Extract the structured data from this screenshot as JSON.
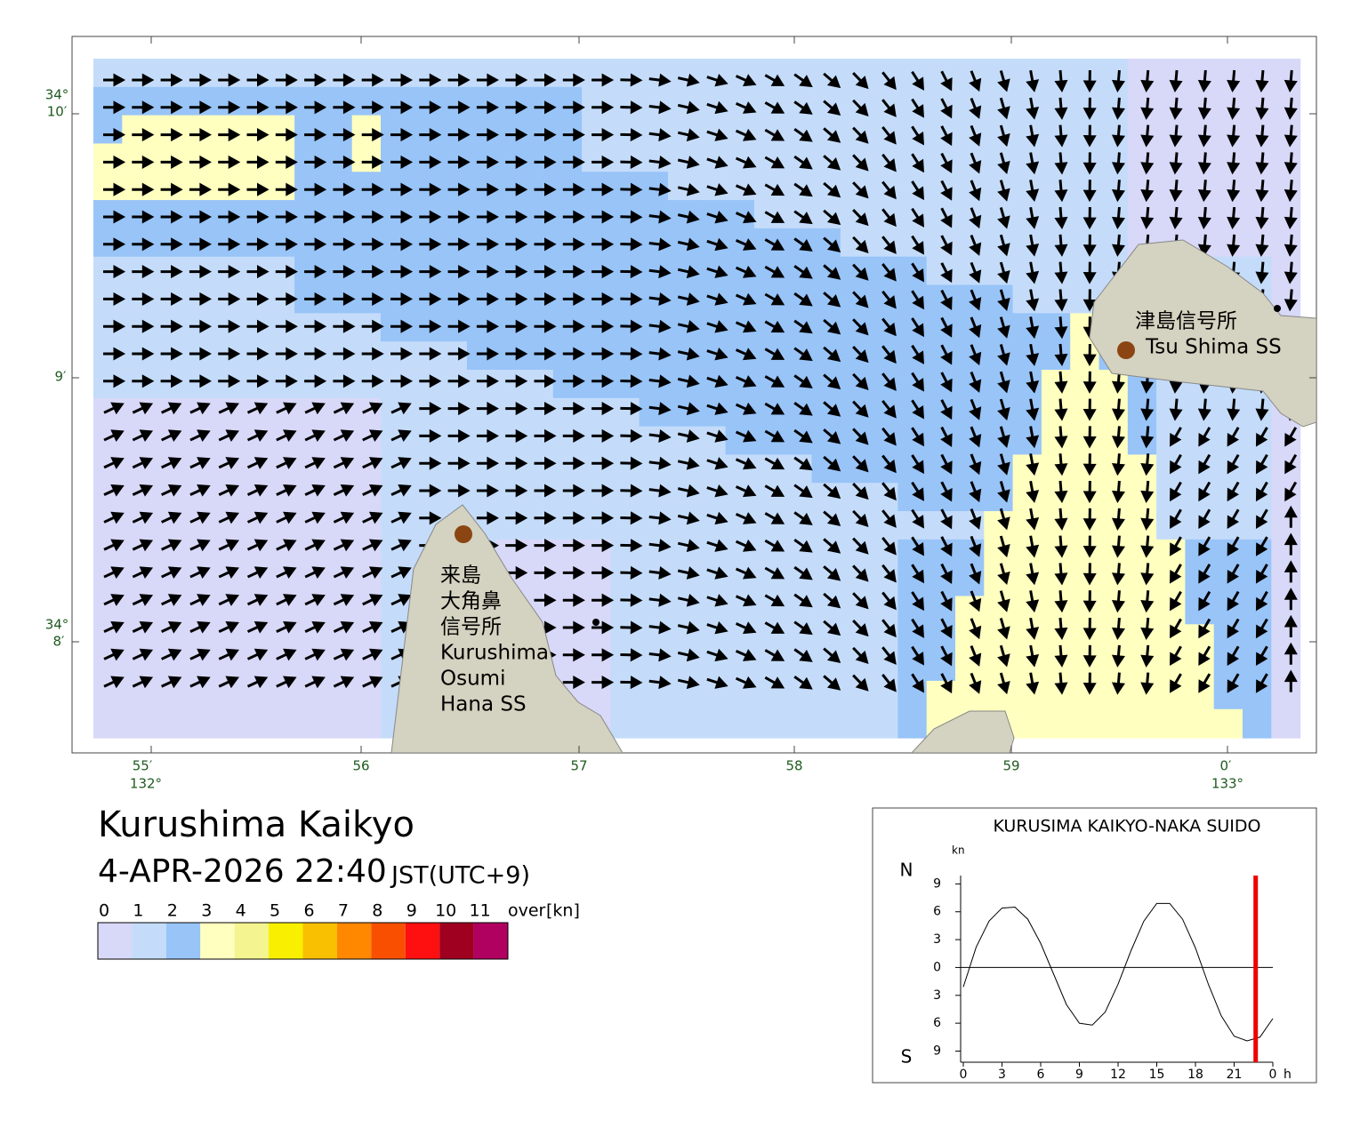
{
  "header": {
    "title": "Kurushima Kaikyo",
    "datetime": "4-APR-2026 22:40",
    "timezone": "JST(UTC+9)"
  },
  "map": {
    "longitude_labels": [
      "55′",
      "56",
      "57",
      "58",
      "59",
      "0′"
    ],
    "degree_labels": [
      "132°",
      "133°"
    ],
    "latitude_labels": [
      "34°",
      "10′",
      "9′",
      "34°",
      "8′"
    ],
    "places": [
      {
        "lines": [
          "津島信号所",
          "Tsu Shima SS"
        ]
      },
      {
        "lines": [
          "来島",
          "大角鼻",
          "信号所",
          "Kurushima",
          "Osumi",
          "Hana SS"
        ]
      }
    ]
  },
  "legend": {
    "labels": [
      "0",
      "1",
      "2",
      "3",
      "4",
      "5",
      "6",
      "7",
      "8",
      "9",
      "10",
      "11",
      "over"
    ],
    "unit": "[kn]",
    "colors": [
      "#d8d8f8",
      "#c4dcfa",
      "#98c4f8",
      "#ffffc0",
      "#f4f490",
      "#f8f000",
      "#f8c000",
      "#ff8800",
      "#f85000",
      "#ff1010",
      "#a00020",
      "#b00060"
    ]
  },
  "chart_data": {
    "type": "line",
    "title": "KURUSIMA KAIKYO-NAKA SUIDO",
    "y_unit": "kn",
    "x_unit": "h",
    "north_label": "N",
    "south_label": "S",
    "x": [
      0,
      1,
      2,
      3,
      4,
      5,
      6,
      7,
      8,
      9,
      10,
      11,
      12,
      13,
      14,
      15,
      16,
      17,
      18,
      19,
      20,
      21,
      22,
      23,
      24
    ],
    "values": [
      -2.1,
      2.2,
      5.0,
      6.4,
      6.5,
      5.2,
      2.6,
      -0.7,
      -4.0,
      -6.0,
      -6.2,
      -4.8,
      -1.8,
      1.8,
      5.0,
      6.9,
      6.9,
      5.2,
      2.1,
      -1.8,
      -5.2,
      -7.4,
      -7.9,
      -7.5,
      -5.5
    ],
    "color": "#000000",
    "xlim": [
      0,
      24
    ],
    "ylim": [
      -10.2,
      9.9
    ],
    "xticks": [
      0,
      3,
      6,
      9,
      12,
      15,
      18,
      21,
      {
        "value": 24,
        "label": "0"
      }
    ],
    "yticks": [
      {
        "value": -9,
        "label": "9"
      },
      {
        "value": -6,
        "label": "6"
      },
      {
        "value": -3,
        "label": "3"
      },
      0,
      3,
      6,
      9
    ],
    "zero_line": true,
    "marker_x": 22.67,
    "marker_color": "#ee0000"
  }
}
